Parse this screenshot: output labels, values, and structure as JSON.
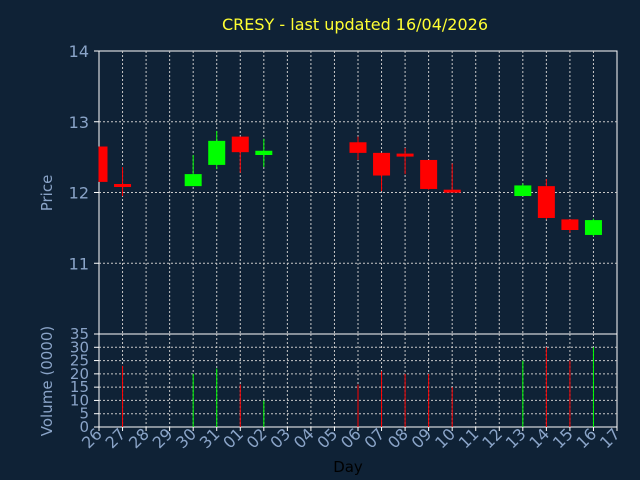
{
  "chart_data": {
    "type": "candlestick",
    "title": "CRESY - last updated 16/04/2026",
    "xlabel": "Day",
    "price_panel": {
      "ylabel": "Price",
      "ylim": [
        10,
        14
      ],
      "yticks": [
        "11",
        "12",
        "13",
        "14"
      ],
      "grid": true
    },
    "volume_panel": {
      "ylabel": "Volume (0000)",
      "ylim": [
        0,
        35
      ],
      "yticks": [
        "0",
        "5",
        "10",
        "15",
        "20",
        "25",
        "30",
        "35"
      ],
      "grid": true
    },
    "x_tick_labels": [
      "26",
      "27",
      "28",
      "29",
      "30",
      "31",
      "01",
      "02",
      "03",
      "04",
      "05",
      "06",
      "07",
      "08",
      "09",
      "10",
      "11",
      "12",
      "13",
      "14",
      "15",
      "16",
      "17"
    ],
    "candles": [
      {
        "day": "26",
        "open": 12.65,
        "high": 12.65,
        "low": 12.15,
        "close": 12.15,
        "volume": 0
      },
      {
        "day": "27",
        "open": 12.12,
        "high": 12.36,
        "low": 11.95,
        "close": 12.09,
        "volume": 23
      },
      {
        "day": "30",
        "open": 12.09,
        "high": 12.53,
        "low": 12.09,
        "close": 12.26,
        "volume": 20
      },
      {
        "day": "31",
        "open": 12.39,
        "high": 12.87,
        "low": 12.33,
        "close": 12.73,
        "volume": 22
      },
      {
        "day": "01",
        "open": 12.79,
        "high": 12.79,
        "low": 12.28,
        "close": 12.57,
        "volume": 16
      },
      {
        "day": "02",
        "open": 12.53,
        "high": 12.76,
        "low": 12.36,
        "close": 12.59,
        "volume": 10
      },
      {
        "day": "06",
        "open": 12.71,
        "high": 12.79,
        "low": 12.46,
        "close": 12.56,
        "volume": 16
      },
      {
        "day": "07",
        "open": 12.56,
        "high": 12.56,
        "low": 12.02,
        "close": 12.24,
        "volume": 21
      },
      {
        "day": "08",
        "open": 12.55,
        "high": 12.63,
        "low": 12.26,
        "close": 12.51,
        "volume": 20
      },
      {
        "day": "09",
        "open": 12.46,
        "high": 12.46,
        "low": 12.04,
        "close": 12.05,
        "volume": 20
      },
      {
        "day": "10",
        "open": 12.04,
        "high": 12.41,
        "low": 12.02,
        "close": 12.02,
        "volume": 15
      },
      {
        "day": "13",
        "open": 11.95,
        "high": 12.13,
        "low": 11.95,
        "close": 12.1,
        "volume": 25
      },
      {
        "day": "14",
        "open": 12.09,
        "high": 12.19,
        "low": 11.62,
        "close": 11.64,
        "volume": 30
      },
      {
        "day": "15",
        "open": 11.62,
        "high": 11.62,
        "low": 11.43,
        "close": 11.47,
        "volume": 25
      },
      {
        "day": "16",
        "open": 11.4,
        "high": 11.63,
        "low": 11.38,
        "close": 11.61,
        "volume": 30
      }
    ]
  },
  "colors": {
    "background": "#0f2236",
    "frame": "#ffffff",
    "grid": "#c8c8c8",
    "up": "#00ff00",
    "down": "#ff0000",
    "title": "#ffff33",
    "tick": "#8aa4c8",
    "xlabel": "#000000"
  }
}
